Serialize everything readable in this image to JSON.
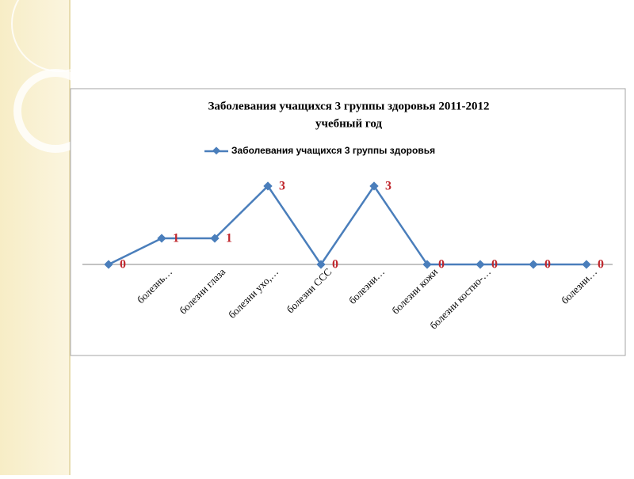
{
  "chart_data": {
    "type": "line",
    "title": "Заболевания учащихся 3 группы здоровья  2011-2012 учебный год",
    "categories": [
      null,
      "болезнь…",
      "болезни глаза",
      "болезни ухо,…",
      "болезни ССС",
      "болезни…",
      "болезни кожи",
      "болезни костно-…",
      null,
      "болезни…"
    ],
    "series": [
      {
        "name": "Заболевания учащихся 3 группы здоровья",
        "color": "#4a7ebb",
        "values": [
          0,
          1,
          1,
          3,
          0,
          3,
          0,
          0,
          0,
          0
        ]
      }
    ],
    "ylim": [
      0,
      4
    ],
    "value_label_color": "#c0272d",
    "legend": "top"
  }
}
